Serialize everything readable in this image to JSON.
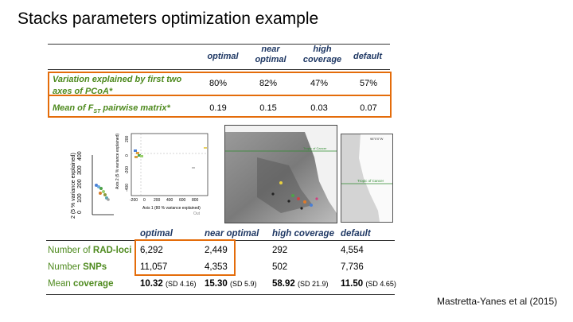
{
  "slide": {
    "title": "Stacks parameters optimization example",
    "credit": "Mastretta-Yanes et al (2015)"
  },
  "top_table": {
    "columns": [
      "optimal",
      "near optimal",
      "high coverage",
      "default"
    ],
    "col_optimal": "optimal",
    "col_near": [
      "near",
      "optimal"
    ],
    "col_high": [
      "high",
      "coverage"
    ],
    "col_default": "default",
    "row1_label": [
      "Variation explained by  first two",
      "axes of PCoA*"
    ],
    "row1_values": [
      "80%",
      "82%",
      "47%",
      "57%"
    ],
    "row2_label_prefix": "Mean of F",
    "row2_label_sub": "ST",
    "row2_label_suffix": " pairwise matrix*",
    "row2_values": [
      "0.19",
      "0.15",
      "0.03",
      "0.07"
    ]
  },
  "figures": {
    "pcoa_small_ylabel": "2 (5 % variance explained)",
    "pcoa_inset_xlabel": "Axis 1 (80 % variance explained)",
    "pcoa_inset_ylabel": "Axis 2 (5 % variance explained)",
    "pcoa_inset_xticks": [
      "-200",
      "0",
      "200",
      "400",
      "600",
      "800"
    ],
    "pcoa_small_yticks": [
      "400",
      "300",
      "200",
      "100",
      "0"
    ],
    "pcoa_inset_yticks": [
      "200",
      "0",
      "-200",
      "-400"
    ],
    "out_label": "Out",
    "map_label1": "Tropic of Cancer",
    "map_label2": "Tropic of Cancer",
    "map_coord": "98°0'0\"W"
  },
  "bottom_table": {
    "col_optimal": "optimal",
    "col_near": "near optimal",
    "col_high": "high coverage",
    "col_default": "default",
    "row1_prefix": "Number of ",
    "row1_strong": "RAD-loci",
    "row1_values": [
      "6,292",
      "2,449",
      "292",
      "4,554"
    ],
    "row2_prefix": "Number ",
    "row2_strong": "SNPs",
    "row2_values": [
      "11,057",
      "4,353",
      "502",
      "7,736"
    ],
    "row3_prefix": "Mean ",
    "row3_strong": "coverage",
    "row3_values": [
      "10.32",
      "15.30",
      "58.92",
      "11.50"
    ],
    "row3_sd": [
      "(SD 4.16)",
      "(SD 5.9)",
      "(SD 21.9)",
      "(SD 4.65)"
    ]
  }
}
